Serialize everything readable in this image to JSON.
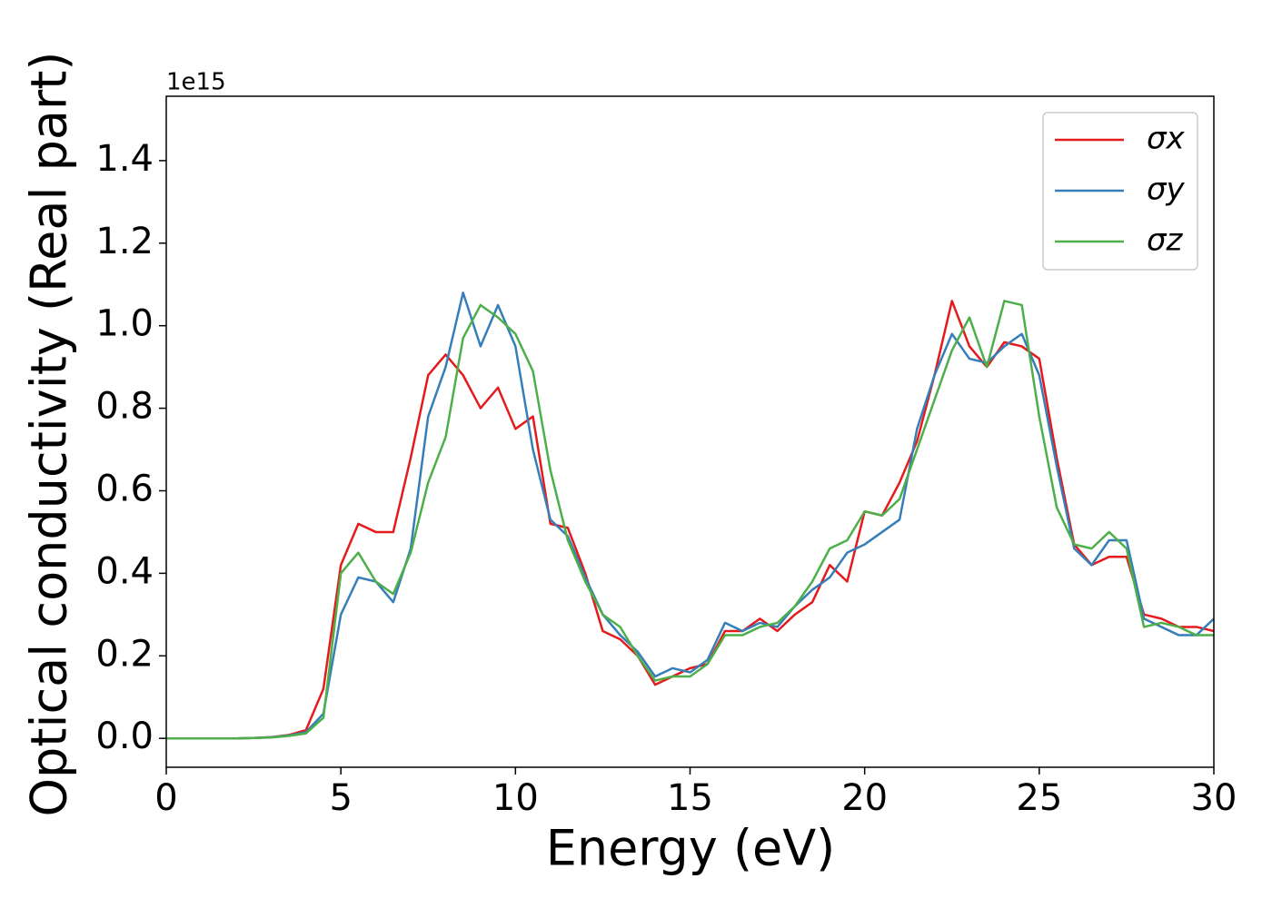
{
  "chart_data": {
    "type": "line",
    "xlabel": "Energy (eV)",
    "ylabel": "Optical conductivity (Real part)",
    "offset_text": "1e15",
    "x": [
      0,
      0.5,
      1,
      1.5,
      2,
      2.5,
      3,
      3.5,
      4,
      4.5,
      5,
      5.5,
      6,
      6.5,
      7,
      7.5,
      8,
      8.5,
      9,
      9.5,
      10,
      10.5,
      11,
      11.5,
      12,
      12.5,
      13,
      13.5,
      14,
      14.5,
      15,
      15.5,
      16,
      16.5,
      17,
      17.5,
      18,
      18.5,
      19,
      19.5,
      20,
      20.5,
      21,
      21.5,
      22,
      22.5,
      23,
      23.5,
      24,
      24.5,
      25,
      25.5,
      26,
      26.5,
      27,
      27.5,
      28,
      28.5,
      29,
      29.5,
      30
    ],
    "series": [
      {
        "name": "σx",
        "color": "#e41a1c",
        "values": [
          0,
          0,
          0,
          0,
          0,
          0.001,
          0.003,
          0.008,
          0.02,
          0.12,
          0.42,
          0.52,
          0.5,
          0.5,
          0.68,
          0.88,
          0.93,
          0.88,
          0.8,
          0.85,
          0.75,
          0.78,
          0.52,
          0.51,
          0.4,
          0.26,
          0.24,
          0.2,
          0.13,
          0.15,
          0.17,
          0.18,
          0.26,
          0.26,
          0.29,
          0.26,
          0.3,
          0.33,
          0.42,
          0.38,
          0.55,
          0.54,
          0.62,
          0.72,
          0.88,
          1.06,
          0.95,
          0.9,
          0.96,
          0.95,
          0.92,
          0.68,
          0.47,
          0.42,
          0.44,
          0.44,
          0.3,
          0.29,
          0.27,
          0.27,
          0.26
        ]
      },
      {
        "name": "σy",
        "color": "#377eb8",
        "values": [
          0,
          0,
          0,
          0,
          0,
          0.001,
          0.003,
          0.007,
          0.015,
          0.06,
          0.3,
          0.39,
          0.38,
          0.33,
          0.46,
          0.78,
          0.9,
          1.08,
          0.95,
          1.05,
          0.95,
          0.7,
          0.53,
          0.49,
          0.39,
          0.3,
          0.25,
          0.21,
          0.15,
          0.17,
          0.16,
          0.19,
          0.28,
          0.26,
          0.28,
          0.27,
          0.32,
          0.36,
          0.39,
          0.45,
          0.47,
          0.5,
          0.53,
          0.75,
          0.88,
          0.98,
          0.92,
          0.91,
          0.95,
          0.98,
          0.88,
          0.66,
          0.46,
          0.42,
          0.48,
          0.48,
          0.29,
          0.27,
          0.25,
          0.25,
          0.29
        ]
      },
      {
        "name": "σz",
        "color": "#4daf4a",
        "values": [
          0,
          0,
          0,
          0,
          0,
          0.001,
          0.002,
          0.006,
          0.012,
          0.05,
          0.4,
          0.45,
          0.38,
          0.35,
          0.45,
          0.62,
          0.73,
          0.97,
          1.05,
          1.02,
          0.98,
          0.89,
          0.65,
          0.48,
          0.38,
          0.3,
          0.27,
          0.2,
          0.14,
          0.15,
          0.15,
          0.18,
          0.25,
          0.25,
          0.27,
          0.28,
          0.32,
          0.38,
          0.46,
          0.48,
          0.55,
          0.54,
          0.58,
          0.7,
          0.82,
          0.94,
          1.02,
          0.9,
          1.06,
          1.05,
          0.78,
          0.56,
          0.47,
          0.46,
          0.5,
          0.46,
          0.27,
          0.28,
          0.27,
          0.25,
          0.25
        ]
      }
    ],
    "xlim": [
      0,
      30
    ],
    "xticks": [
      0,
      5,
      10,
      15,
      20,
      25,
      30
    ],
    "ylim": [
      -0.07,
      1.556
    ],
    "yticks": [
      {
        "value": 0,
        "label": "0.0"
      },
      0.2,
      0.4,
      0.6,
      0.8,
      {
        "value": 1.0,
        "label": "1.0"
      },
      1.2,
      1.4
    ],
    "legend": "upper right",
    "grid": false
  }
}
